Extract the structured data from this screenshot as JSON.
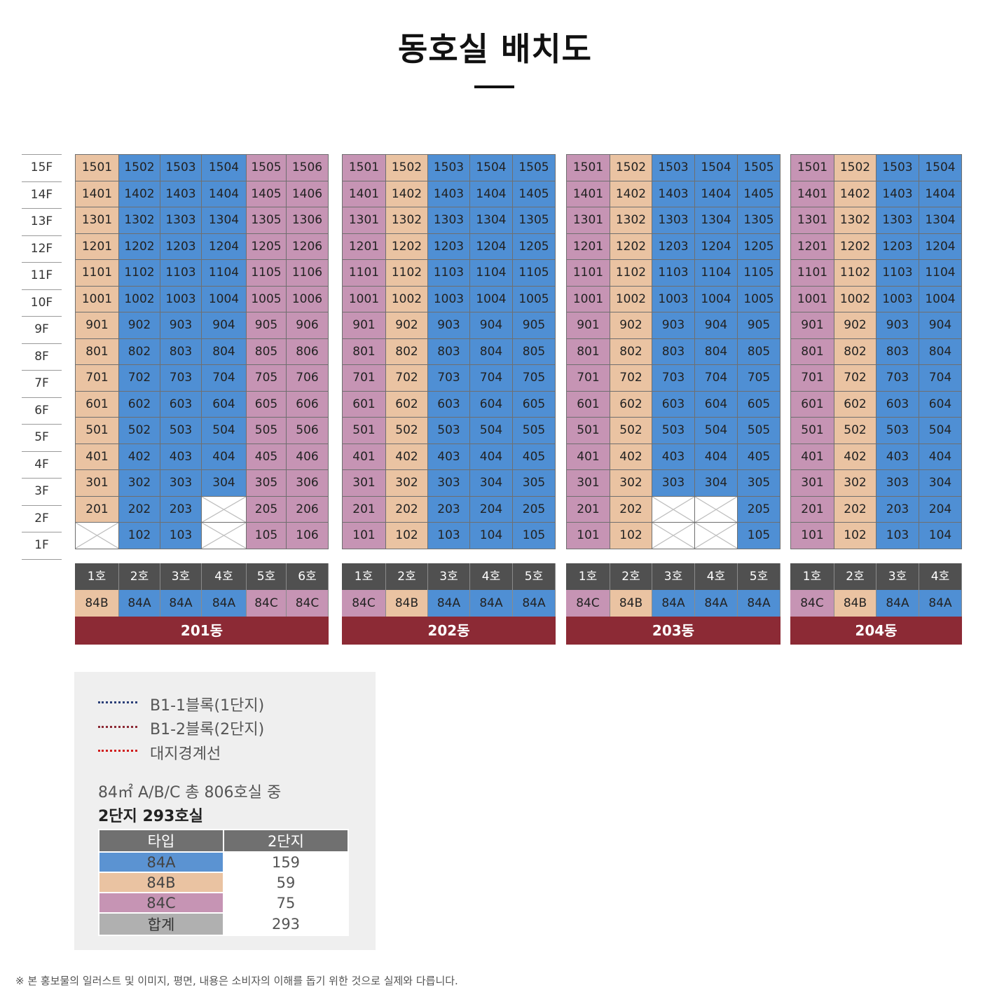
{
  "title": "동호실 배치도",
  "floors": [
    "15F",
    "14F",
    "13F",
    "12F",
    "11F",
    "10F",
    "9F",
    "8F",
    "7F",
    "6F",
    "5F",
    "4F",
    "3F",
    "2F",
    "1F"
  ],
  "colors": {
    "84A": "#4f8fd4",
    "84B": "#eac3a2",
    "84C": "#c694b4",
    "building_bar": "#8c2a35",
    "header_bar": "#505050"
  },
  "buildings": [
    {
      "name": "201동",
      "units": [
        "1호",
        "2호",
        "3호",
        "4호",
        "5호",
        "6호"
      ],
      "types": [
        "84B",
        "84A",
        "84A",
        "84A",
        "84C",
        "84C"
      ],
      "missing": {
        "2F": [
          4
        ],
        "1F": [
          1,
          4
        ]
      }
    },
    {
      "name": "202동",
      "units": [
        "1호",
        "2호",
        "3호",
        "4호",
        "5호"
      ],
      "types": [
        "84C",
        "84B",
        "84A",
        "84A",
        "84A"
      ],
      "missing": {}
    },
    {
      "name": "203동",
      "units": [
        "1호",
        "2호",
        "3호",
        "4호",
        "5호"
      ],
      "types": [
        "84C",
        "84B",
        "84A",
        "84A",
        "84A"
      ],
      "missing": {
        "2F": [
          3,
          4
        ],
        "1F": [
          3,
          4
        ]
      }
    },
    {
      "name": "204동",
      "units": [
        "1호",
        "2호",
        "3호",
        "4호"
      ],
      "types": [
        "84C",
        "84B",
        "84A",
        "84A"
      ],
      "missing": {}
    }
  ],
  "legend": {
    "lines": [
      {
        "label": "B1-1블록(1단지)",
        "color": "#2b3f78"
      },
      {
        "label": "B1-2블록(2단지)",
        "color": "#8c2a35"
      },
      {
        "label": "대지경계선",
        "color": "#d01c1c"
      }
    ],
    "summary_line1": "84㎡ A/B/C 총 806호실 중",
    "summary_line2": "2단지 293호실",
    "table_header": [
      "타입",
      "2단지"
    ],
    "table_rows": [
      {
        "type": "84A",
        "count": "159"
      },
      {
        "type": "84B",
        "count": "59"
      },
      {
        "type": "84C",
        "count": "75"
      },
      {
        "type": "합계",
        "count": "293"
      }
    ]
  },
  "footnote": "※ 본 홍보물의 일러스트 및 이미지, 평면, 내용은 소비자의 이해를 돕기 위한 것으로 실제와 다릅니다."
}
